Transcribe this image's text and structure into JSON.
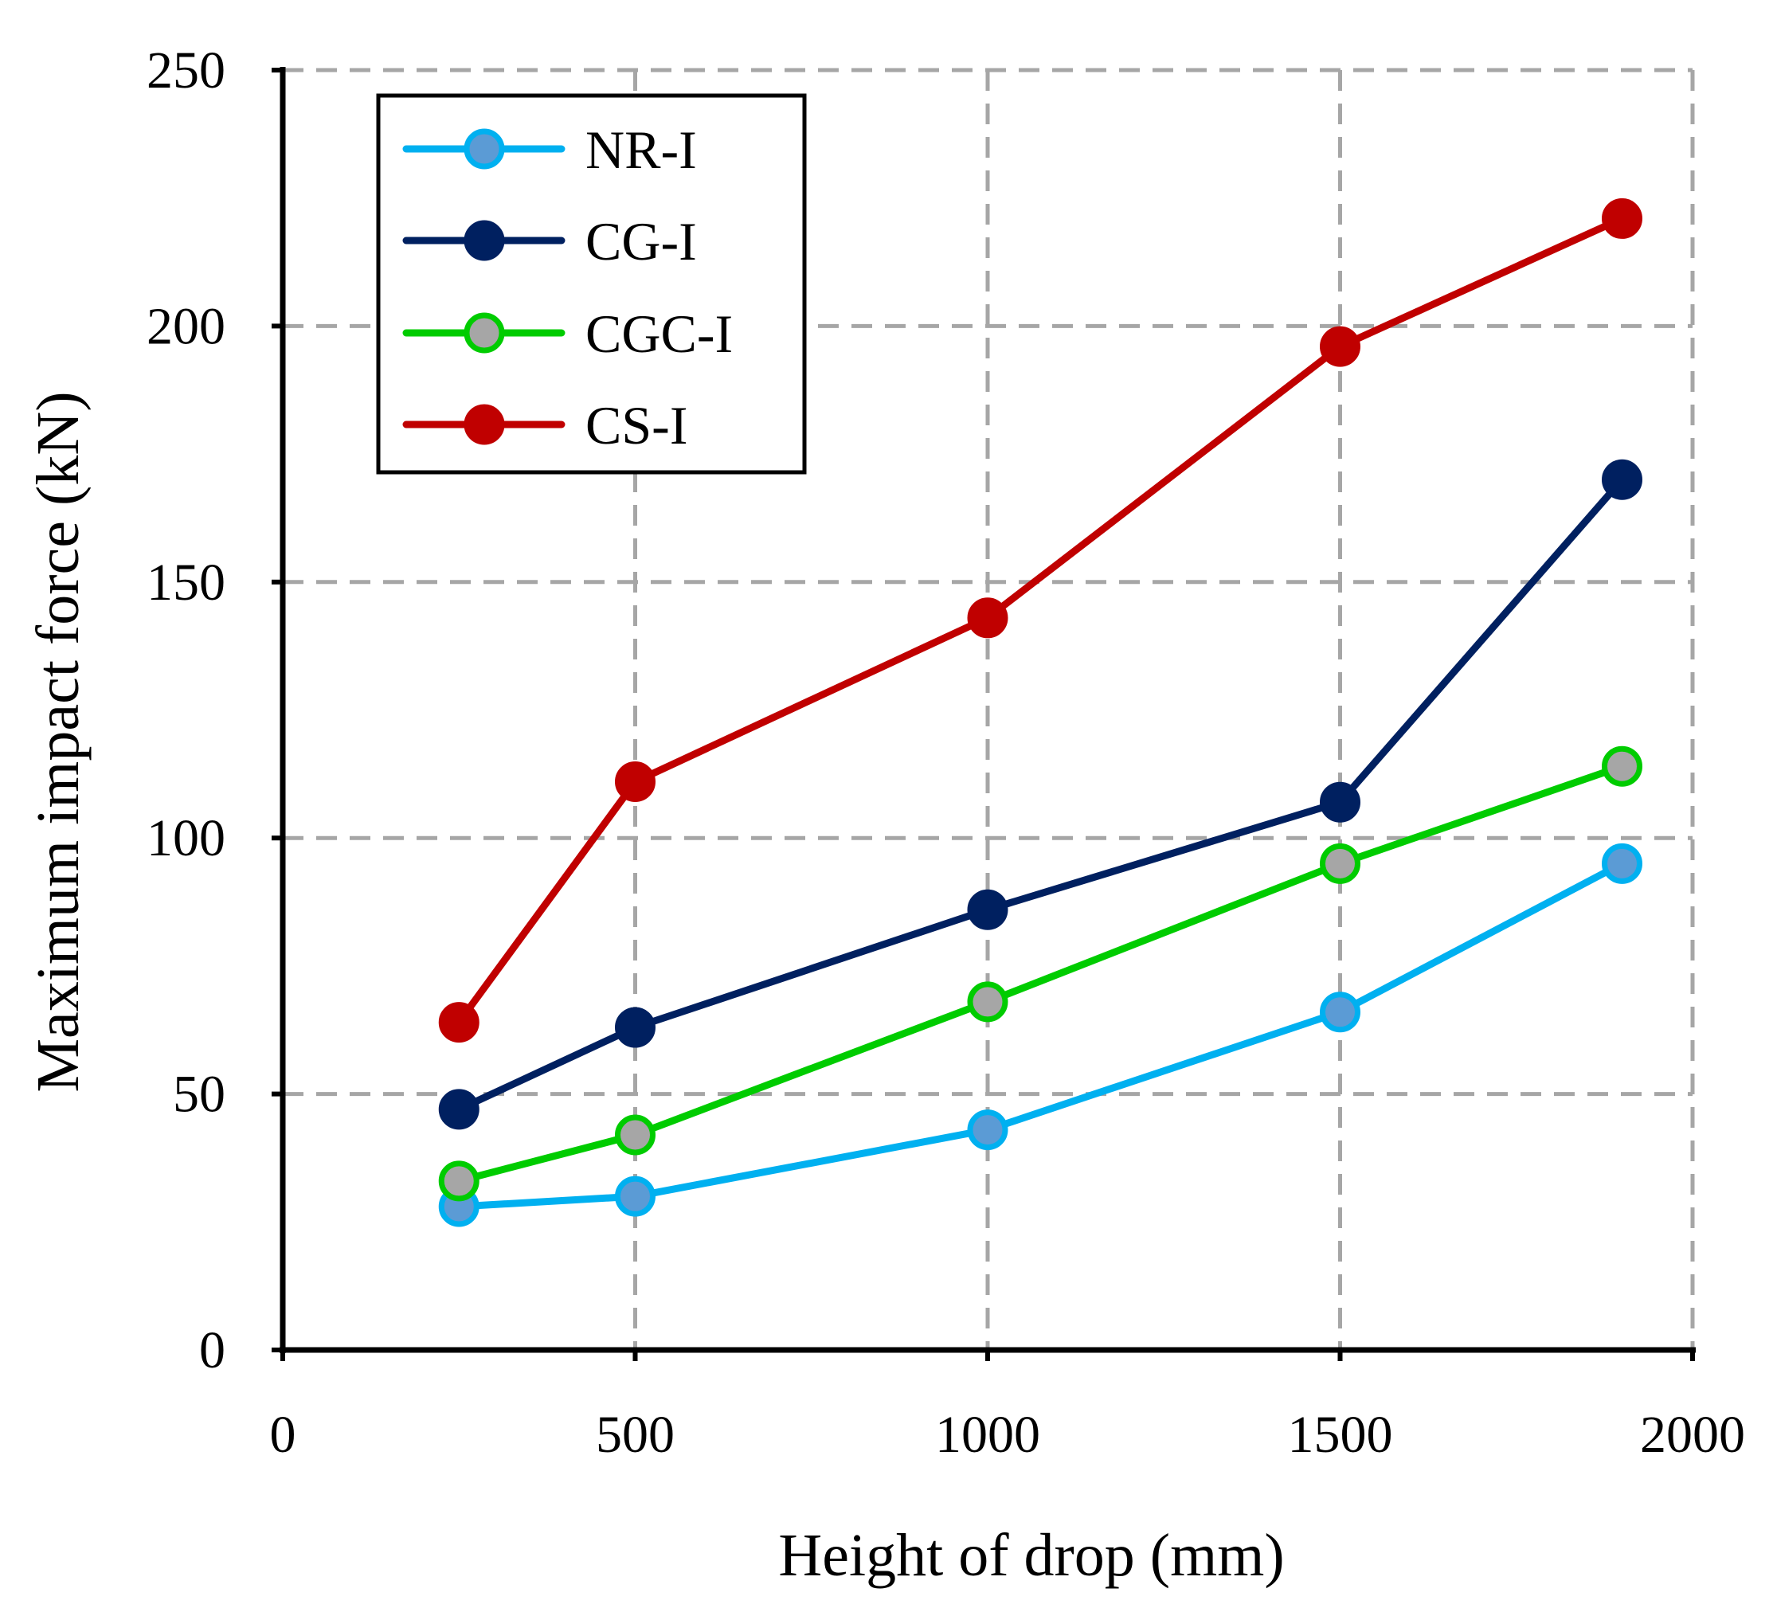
{
  "chart_data": {
    "type": "line",
    "title": "",
    "xlabel": "Height of drop (mm)",
    "ylabel": "Maximum impact force (kN)",
    "xlim": [
      0,
      2000
    ],
    "ylim": [
      0,
      250
    ],
    "xticks": [
      0,
      500,
      1000,
      1500,
      2000
    ],
    "yticks": [
      0,
      50,
      100,
      150,
      200,
      250
    ],
    "xtick_labels": [
      "0",
      "500",
      "1000",
      "1500",
      "2000"
    ],
    "ytick_labels": [
      "0",
      "50",
      "100",
      "150",
      "200",
      "250"
    ],
    "grid": true,
    "legend_position": "top-left",
    "x": [
      250,
      500,
      1000,
      1500,
      1900
    ],
    "series": [
      {
        "name": "NR-I",
        "values": [
          28,
          30,
          43,
          66,
          95
        ],
        "line_color": "#00B0F0",
        "marker_fill": "#5B9BD5",
        "marker_edge": "#00B0F0"
      },
      {
        "name": "CG-I",
        "values": [
          47,
          63,
          86,
          107,
          170
        ],
        "line_color": "#002060",
        "marker_fill": "#002060",
        "marker_edge": "#002060"
      },
      {
        "name": "CGC-I",
        "values": [
          33,
          42,
          68,
          95,
          114
        ],
        "line_color": "#00CC00",
        "marker_fill": "#A6A6A6",
        "marker_edge": "#00CC00"
      },
      {
        "name": "CS-I",
        "values": [
          64,
          111,
          143,
          196,
          221
        ],
        "line_color": "#C00000",
        "marker_fill": "#C00000",
        "marker_edge": "#C00000"
      }
    ]
  }
}
